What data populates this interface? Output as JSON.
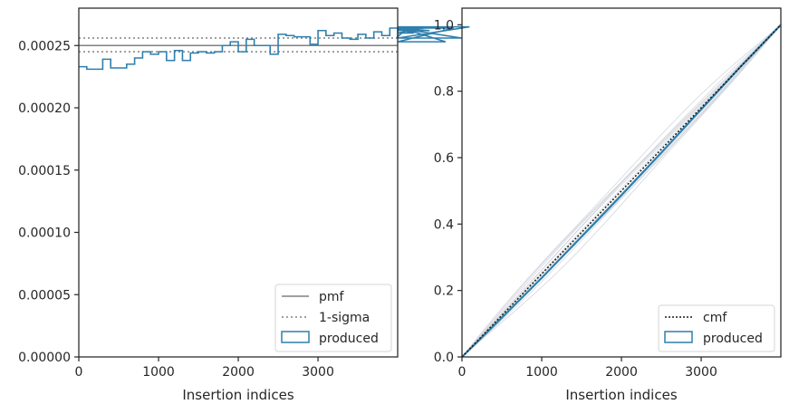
{
  "chart_data": [
    {
      "type": "step",
      "xlabel": "Insertion indices",
      "ylabel": "",
      "xlim": [
        0,
        3999
      ],
      "ylim": [
        0,
        0.00028
      ],
      "xticks": [
        "0",
        "1000",
        "2000",
        "3000"
      ],
      "yticks": [
        "0.00000",
        "0.00005",
        "0.00010",
        "0.00015",
        "0.00020",
        "0.00025"
      ],
      "reference_lines": {
        "pmf": 0.00025,
        "sigma_upper": 0.000256,
        "sigma_lower": 0.000245
      },
      "bin_width": 100,
      "produced_values": [
        0.000233,
        0.000231,
        0.000231,
        0.000239,
        0.000232,
        0.000232,
        0.000235,
        0.00024,
        0.000245,
        0.000243,
        0.000245,
        0.000238,
        0.000246,
        0.000238,
        0.000244,
        0.000245,
        0.000244,
        0.000245,
        0.00025,
        0.000253,
        0.000245,
        0.000255,
        0.00025,
        0.00025,
        0.000243,
        0.000259,
        0.000258,
        0.000257,
        0.000257,
        0.000251,
        0.000262,
        0.000258,
        0.00026,
        0.000256,
        0.000255,
        0.000259,
        0.000256,
        0.000261,
        0.000258,
        0.000264,
        0.000257,
        0.000263,
        0.00026,
        0.000264,
        0.000262,
        0.000265,
        0.000253,
        0.000264,
        0.000256,
        0.000265
      ],
      "legend": {
        "position": "lower-right",
        "entries": [
          "pmf",
          "1-sigma",
          "produced"
        ]
      },
      "colors": {
        "produced": "#2f7fad",
        "pmf": "#808080",
        "sigma": "#808080"
      }
    },
    {
      "type": "line",
      "xlabel": "Insertion indices",
      "ylabel": "",
      "xlim": [
        0,
        3999
      ],
      "ylim": [
        0,
        1.05
      ],
      "xticks": [
        "0",
        "1000",
        "2000",
        "3000"
      ],
      "yticks": [
        "0.0",
        "0.2",
        "0.4",
        "0.6",
        "0.8",
        "1.0"
      ],
      "cmf": {
        "x": [
          0,
          3999
        ],
        "y": [
          0,
          1
        ]
      },
      "produced": {
        "x": [
          0,
          500,
          1000,
          1500,
          2000,
          2500,
          3000,
          3500,
          3999
        ],
        "y": [
          0,
          0.118,
          0.238,
          0.362,
          0.487,
          0.615,
          0.745,
          0.875,
          1.0
        ]
      },
      "legend": {
        "position": "lower-right",
        "entries": [
          "cmf",
          "produced"
        ]
      },
      "colors": {
        "produced": "#2f7fad",
        "cmf": "#1a1a1a",
        "samples": "#c7ccd4"
      }
    }
  ]
}
